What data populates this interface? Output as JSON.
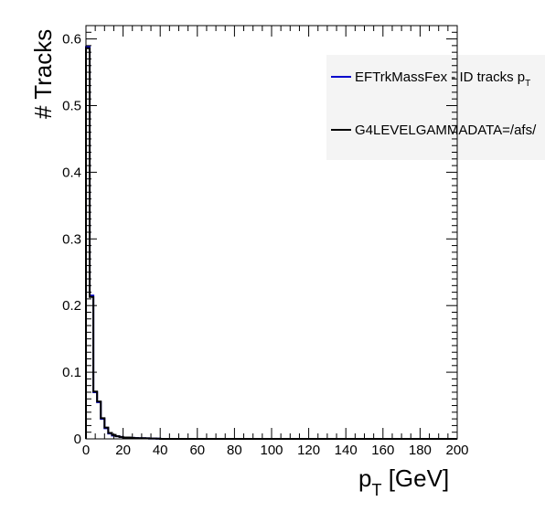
{
  "chart_data": {
    "type": "step-histogram",
    "xlabel_main": "p",
    "xlabel_sub": "T",
    "xlabel_unit": " [GeV]",
    "ylabel": "# Tracks",
    "xlim": [
      0,
      200
    ],
    "ylim": [
      0,
      0.62
    ],
    "bin_width": 2,
    "x_ticks": [
      0,
      20,
      40,
      60,
      80,
      100,
      120,
      140,
      160,
      180,
      200
    ],
    "x_tick_labels": [
      "0",
      "20",
      "40",
      "60",
      "80",
      "100",
      "120",
      "140",
      "160",
      "180",
      "200"
    ],
    "y_ticks": [
      0,
      0.1,
      0.2,
      0.3,
      0.4,
      0.5,
      0.6
    ],
    "y_tick_labels": [
      "0",
      "0.1",
      "0.2",
      "0.3",
      "0.4",
      "0.5",
      "0.6"
    ],
    "grid": false,
    "legend_position": "top-right",
    "series": [
      {
        "name": "EFTrkMassFex - ID tracks p",
        "name_sub": "T",
        "color": "#0000cc",
        "values": [
          0.588,
          0.215,
          0.07,
          0.055,
          0.03,
          0.016,
          0.008,
          0.005,
          0.004,
          0.003,
          0.002,
          0.002,
          0.0015,
          0.0012,
          0.001,
          0.001,
          0.0008,
          0.0006,
          0.0005,
          0.0004
        ]
      },
      {
        "name": "G4LEVELGAMMADATA=/afs/",
        "color": "#000000",
        "values": [
          0.586,
          0.213,
          0.071,
          0.056,
          0.031,
          0.017,
          0.009,
          0.006,
          0.004,
          0.003,
          0.002,
          0.002,
          0.0015,
          0.0012,
          0.001,
          0.001,
          0.0008,
          0.0006,
          0.0005,
          0.0004
        ]
      }
    ]
  }
}
